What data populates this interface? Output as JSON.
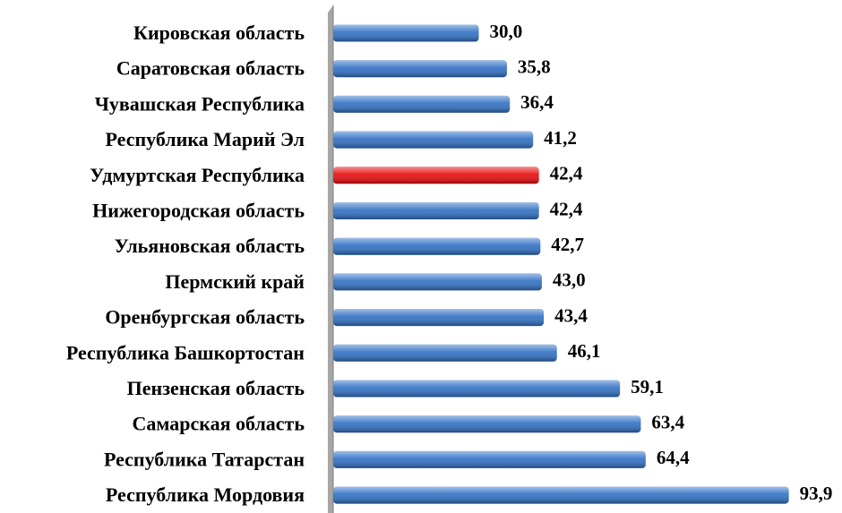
{
  "chart_data": {
    "type": "bar",
    "orientation": "horizontal",
    "categories": [
      "Кировская область",
      "Саратовская область",
      "Чувашская Республика",
      "Республика Марий Эл",
      "Удмуртская Республика",
      "Нижегородская область",
      "Ульяновская область",
      "Пермский край",
      "Оренбургская область",
      "Республика Башкортостан",
      "Пензенская область",
      "Самарская область",
      "Республика Татарстан",
      "Республика Мордовия"
    ],
    "values": [
      30.0,
      35.8,
      36.4,
      41.2,
      42.4,
      42.4,
      42.7,
      43.0,
      43.4,
      46.1,
      59.1,
      63.4,
      64.4,
      93.9
    ],
    "value_labels": [
      "30,0",
      "35,8",
      "36,4",
      "41,2",
      "42,4",
      "42,4",
      "42,7",
      "43,0",
      "43,4",
      "46,1",
      "59,1",
      "63,4",
      "64,4",
      "93,9"
    ],
    "colors": [
      "#2f6fc4",
      "#2f6fc4",
      "#2f6fc4",
      "#2f6fc4",
      "#e8090b",
      "#2f6fc4",
      "#2f6fc4",
      "#2f6fc4",
      "#2f6fc4",
      "#2f6fc4",
      "#2f6fc4",
      "#2f6fc4",
      "#2f6fc4",
      "#2f6fc4"
    ],
    "xlim": [
      0,
      96
    ]
  }
}
